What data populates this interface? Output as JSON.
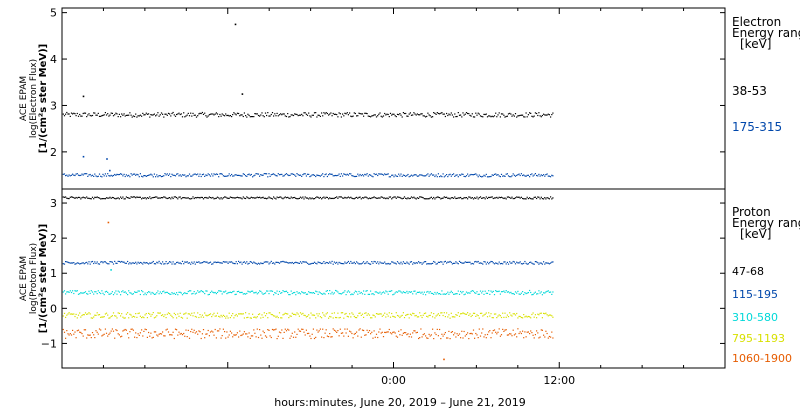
{
  "chart_data": [
    {
      "type": "scatter",
      "ylabel_lines": [
        "ACE EPAM",
        "log(Electron Flux)",
        "[1/(cm²s ster MeV)]"
      ],
      "legend_title_lines": [
        "Electron",
        "Energy ranges",
        "[keV]"
      ],
      "ylim": [
        1.2,
        5.1
      ],
      "yticks": [
        2,
        3,
        4,
        5
      ],
      "ytick_labels": [
        "2",
        "3",
        "4",
        "5"
      ],
      "series": [
        {
          "name": "38-53",
          "color": "#000000",
          "level": 2.8,
          "spread": 0.05,
          "outliers": [
            {
              "x": 1.5,
              "y": 3.2
            },
            {
              "x": 12.5,
              "y": 4.75
            },
            {
              "x": 13.0,
              "y": 3.25
            }
          ]
        },
        {
          "name": "175-315",
          "color": "#0047ab",
          "level": 1.5,
          "spread": 0.035,
          "outliers": [
            {
              "x": 1.5,
              "y": 1.9
            },
            {
              "x": 3.2,
              "y": 1.85
            },
            {
              "x": 3.4,
              "y": 1.6
            }
          ]
        }
      ]
    },
    {
      "type": "scatter",
      "ylabel_lines": [
        "ACE EPAM",
        "log(Proton Flux)",
        "[1/(cm²s ster MeV)]"
      ],
      "legend_title_lines": [
        "Proton",
        "Energy ranges",
        "[keV]"
      ],
      "ylim": [
        -1.7,
        3.4
      ],
      "yticks": [
        -1,
        0,
        1,
        2,
        3
      ],
      "ytick_labels": [
        "−1",
        "0",
        "1",
        "2",
        "3"
      ],
      "series": [
        {
          "name": "47-68",
          "color": "#000000",
          "level": 3.15,
          "spread": 0.03,
          "outliers": []
        },
        {
          "name": "115-195",
          "color": "#0047ab",
          "level": 1.3,
          "spread": 0.04,
          "outliers": []
        },
        {
          "name": "310-580",
          "color": "#00d8d8",
          "level": 0.45,
          "spread": 0.06,
          "outliers": [
            {
              "x": 3.5,
              "y": 1.1
            }
          ]
        },
        {
          "name": "795-1193",
          "color": "#d8e000",
          "level": -0.2,
          "spread": 0.08,
          "outliers": []
        },
        {
          "name": "1060-1900",
          "color": "#e65c00",
          "level": -0.72,
          "spread": 0.14,
          "outliers": [
            {
              "x": 3.3,
              "y": 2.45
            },
            {
              "x": 27.6,
              "y": -1.45
            }
          ]
        }
      ]
    }
  ],
  "time_axis": {
    "range_hours": [
      0,
      48
    ],
    "data_end_hour": 35.5,
    "tick_labels": [
      {
        "hour": 24,
        "label": "0:00"
      },
      {
        "hour": 36,
        "label": "12:00"
      }
    ]
  },
  "xlabel": "hours:minutes, June 20, 2019 – June 21, 2019"
}
